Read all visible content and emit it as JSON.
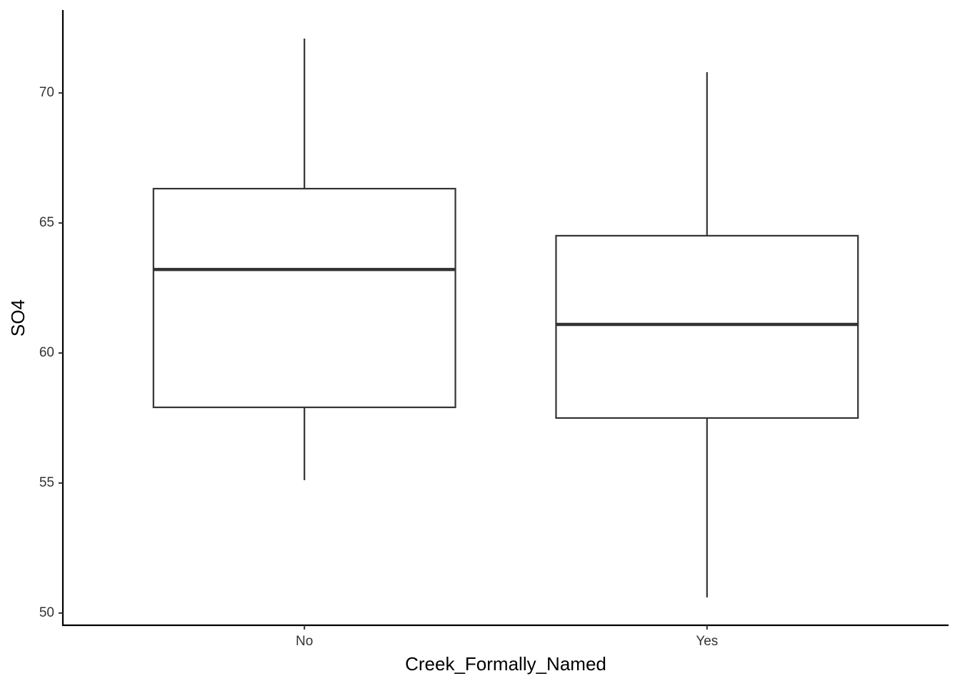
{
  "chart_data": {
    "type": "box",
    "x_label": "Creek_Formally_Named",
    "y_label": "SO4",
    "categories": [
      "No",
      "Yes"
    ],
    "min": [
      55.11,
      50.6
    ],
    "q1": [
      57.91,
      57.5
    ],
    "median": [
      63.21,
      61.1
    ],
    "q3": [
      66.32,
      64.51
    ],
    "max": [
      72.09,
      70.8
    ],
    "color": "#333333",
    "ylim": [
      49.53,
      73.19
    ],
    "yticks": [
      50,
      55,
      60,
      65,
      70
    ],
    "grid": false
  }
}
